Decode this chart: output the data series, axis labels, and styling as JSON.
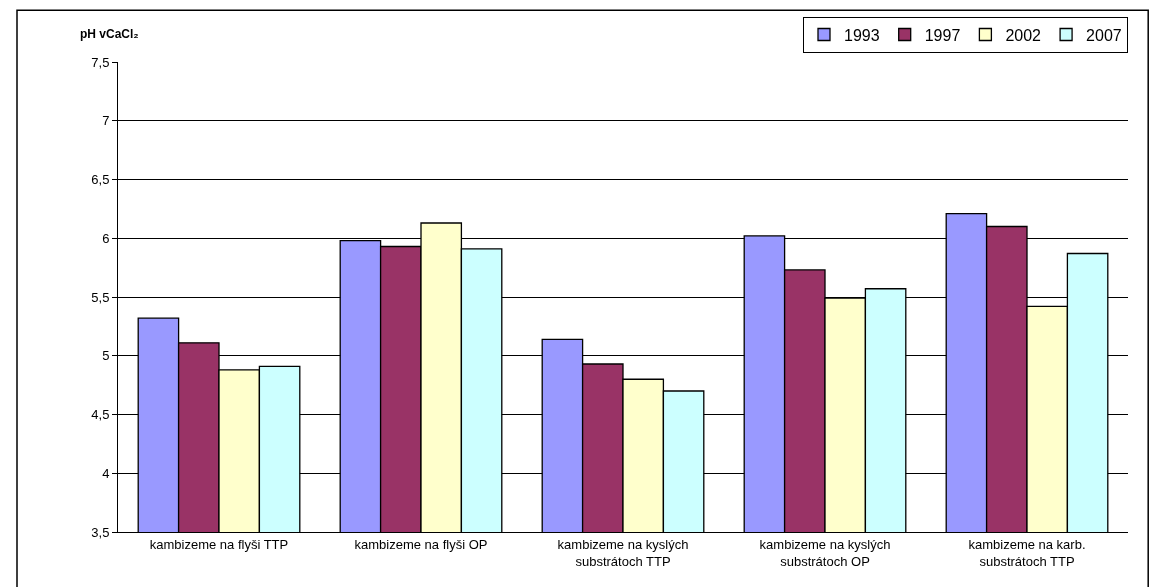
{
  "chart_data": {
    "type": "bar",
    "ylabel": "pH vCaCl₂",
    "categories": [
      "kambizeme na flyši TTP",
      "kambizeme na flyši OP",
      "kambizeme na kyslých substrátoch TTP",
      "kambizeme na kyslých substrátoch OP",
      "kambizeme na karb. substrátoch TTP"
    ],
    "series": [
      {
        "name": "1993",
        "color": "#9999ff",
        "values": [
          5.32,
          5.98,
          5.14,
          6.02,
          6.21
        ]
      },
      {
        "name": "1997",
        "color": "#993366",
        "values": [
          5.11,
          5.93,
          4.93,
          5.73,
          6.1
        ]
      },
      {
        "name": "2002",
        "color": "#ffffcc",
        "values": [
          4.88,
          6.13,
          4.8,
          5.49,
          5.42
        ]
      },
      {
        "name": "2007",
        "color": "#ccffff",
        "values": [
          4.91,
          5.91,
          4.7,
          5.57,
          5.87
        ]
      }
    ],
    "ylim": [
      3.5,
      7.5
    ],
    "yticks": [
      {
        "value": 3.5,
        "label": "3,5"
      },
      4,
      {
        "value": 4.5,
        "label": "4,5"
      },
      5,
      {
        "value": 5.5,
        "label": "5,5"
      },
      6,
      {
        "value": 6.5,
        "label": "6,5"
      },
      7,
      {
        "value": 7.5,
        "label": "7,5"
      }
    ],
    "grid": "y",
    "legend": "top right"
  }
}
